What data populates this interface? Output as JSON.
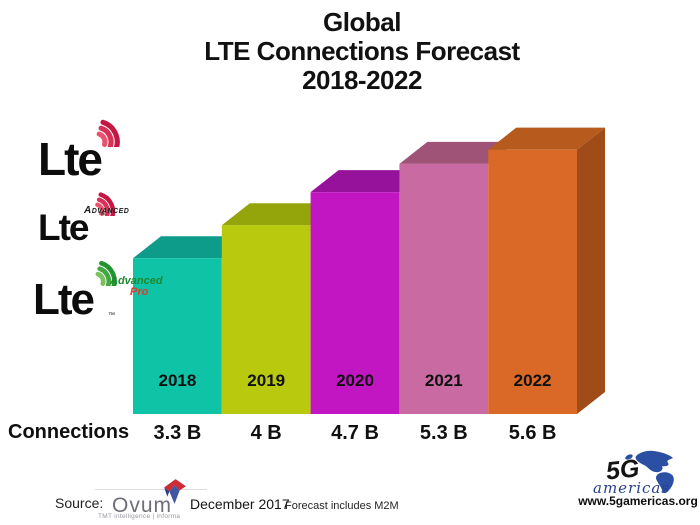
{
  "title": {
    "line1": "Global",
    "line2": "LTE Connections Forecast",
    "line3": "2018-2022"
  },
  "chart_data": {
    "type": "bar",
    "title": "Global LTE Connections Forecast 2018-2022",
    "categories": [
      "2018",
      "2019",
      "2020",
      "2021",
      "2022"
    ],
    "values": [
      3.3,
      4,
      4.7,
      5.3,
      5.6
    ],
    "value_labels": [
      "3.3 B",
      "4 B",
      "4.7 B",
      "5.3 B",
      "5.6 B"
    ],
    "unit": "billions of connections",
    "row_label": "Connections",
    "xlabel": "",
    "ylabel": "",
    "ylim": [
      0,
      6
    ],
    "grid": false,
    "style": "3d-bars",
    "colors": {
      "front": [
        "#0fc3a7",
        "#b8c90e",
        "#c316c3",
        "#c96ba2",
        "#da6927"
      ],
      "top": [
        "#0d9b8a",
        "#93a50b",
        "#97129b",
        "#9e5377",
        "#b75a1e"
      ],
      "side": "#a04c19",
      "label": "#101010"
    }
  },
  "lte_logos": {
    "word": "Lte",
    "advanced": "Advanced",
    "pro": "Pro",
    "tm": "™",
    "items": [
      "LTE",
      "LTE Advanced",
      "LTE Advanced Pro"
    ],
    "arc_colors": {
      "red": [
        "#e8536e",
        "#d93058",
        "#c51744"
      ],
      "green": [
        "#79c25e",
        "#43a843",
        "#239530"
      ]
    }
  },
  "source": {
    "label": "Source:",
    "ovum_text": "Ovum",
    "ovum_tagline": "TMT intelligence | informa",
    "date": "December 2017",
    "note": "Forecast includes M2M"
  },
  "footer": {
    "brand_5g": "5G",
    "brand_americas": "americas",
    "site_url": "www.5gamericas.org",
    "brand_blue": "#2b4fa2"
  }
}
